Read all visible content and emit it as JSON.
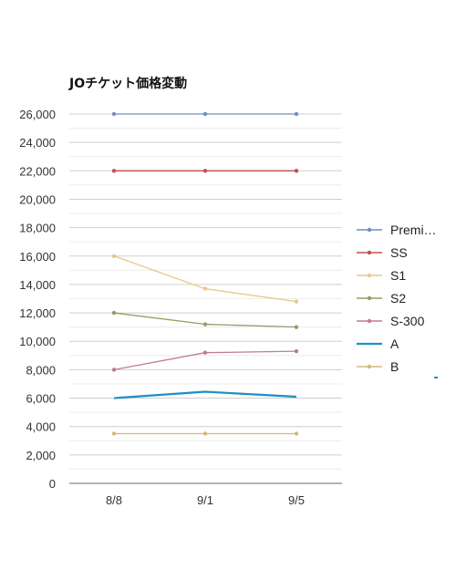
{
  "chart_data": {
    "type": "line",
    "title": "JOチケット価格変動",
    "categories": [
      "8/8",
      "9/1",
      "9/5"
    ],
    "ylim": [
      0,
      26000
    ],
    "yticks": [
      "0",
      "2,000",
      "4,000",
      "6,000",
      "8,000",
      "10,000",
      "12,000",
      "14,000",
      "16,000",
      "18,000",
      "20,000",
      "22,000",
      "24,000",
      "26,000"
    ],
    "ytick_values": [
      0,
      2000,
      4000,
      6000,
      8000,
      10000,
      12000,
      14000,
      16000,
      18000,
      20000,
      22000,
      24000,
      26000
    ],
    "grid": true,
    "legend_position": "right",
    "series": [
      {
        "name": "Premi…",
        "values": [
          26000,
          26000,
          26000
        ],
        "color": "#6d8fbf",
        "markers": true
      },
      {
        "name": "SS",
        "values": [
          22000,
          22000,
          22000
        ],
        "color": "#c0504d",
        "markers": true
      },
      {
        "name": "S1",
        "values": [
          16000,
          13700,
          12800
        ],
        "color": "#e8c88a",
        "markers": true
      },
      {
        "name": "S2",
        "values": [
          12000,
          11200,
          11000
        ],
        "color": "#8ea064",
        "markers": true
      },
      {
        "name": "S-300",
        "values": [
          8000,
          9200,
          9300
        ],
        "color": "#c07c8c",
        "markers": true
      },
      {
        "name": "A",
        "values": [
          6000,
          6450,
          6100
        ],
        "color": "#1f8fc6",
        "markers": false
      },
      {
        "name": "B",
        "values": [
          3500,
          3500,
          3500
        ],
        "color": "#d4b87c",
        "markers": true
      }
    ]
  }
}
